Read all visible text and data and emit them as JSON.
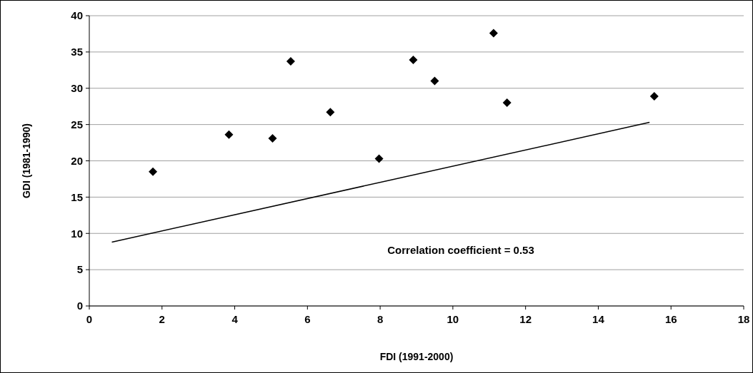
{
  "chart_data": {
    "type": "scatter",
    "xlabel": "FDI (1991-2000)",
    "ylabel": "GDI (1981-1990)",
    "xlim": [
      0,
      18
    ],
    "xticks": [
      0,
      2,
      4,
      6,
      8,
      10,
      12,
      14,
      16,
      18
    ],
    "ylim": [
      0,
      40
    ],
    "yticks": [
      0,
      5,
      10,
      15,
      20,
      25,
      30,
      35,
      40
    ],
    "grid": "y",
    "marker": "diamond",
    "annotations": [
      "Correlation coefficient = 0.53"
    ],
    "series": [
      {
        "color": "#000000",
        "x": [
          1.75,
          3.84,
          5.04,
          5.54,
          6.63,
          7.97,
          8.91,
          9.5,
          11.12,
          11.49,
          15.54
        ],
        "values": [
          18.5,
          23.6,
          23.1,
          33.7,
          26.7,
          20.3,
          33.9,
          31.0,
          37.6,
          28.0,
          28.9
        ]
      },
      {
        "type": "line",
        "color": "#000000",
        "line_style": "solid",
        "marker": "none",
        "x": [
          0.62,
          15.41
        ],
        "values": [
          8.8,
          25.3
        ]
      }
    ]
  }
}
